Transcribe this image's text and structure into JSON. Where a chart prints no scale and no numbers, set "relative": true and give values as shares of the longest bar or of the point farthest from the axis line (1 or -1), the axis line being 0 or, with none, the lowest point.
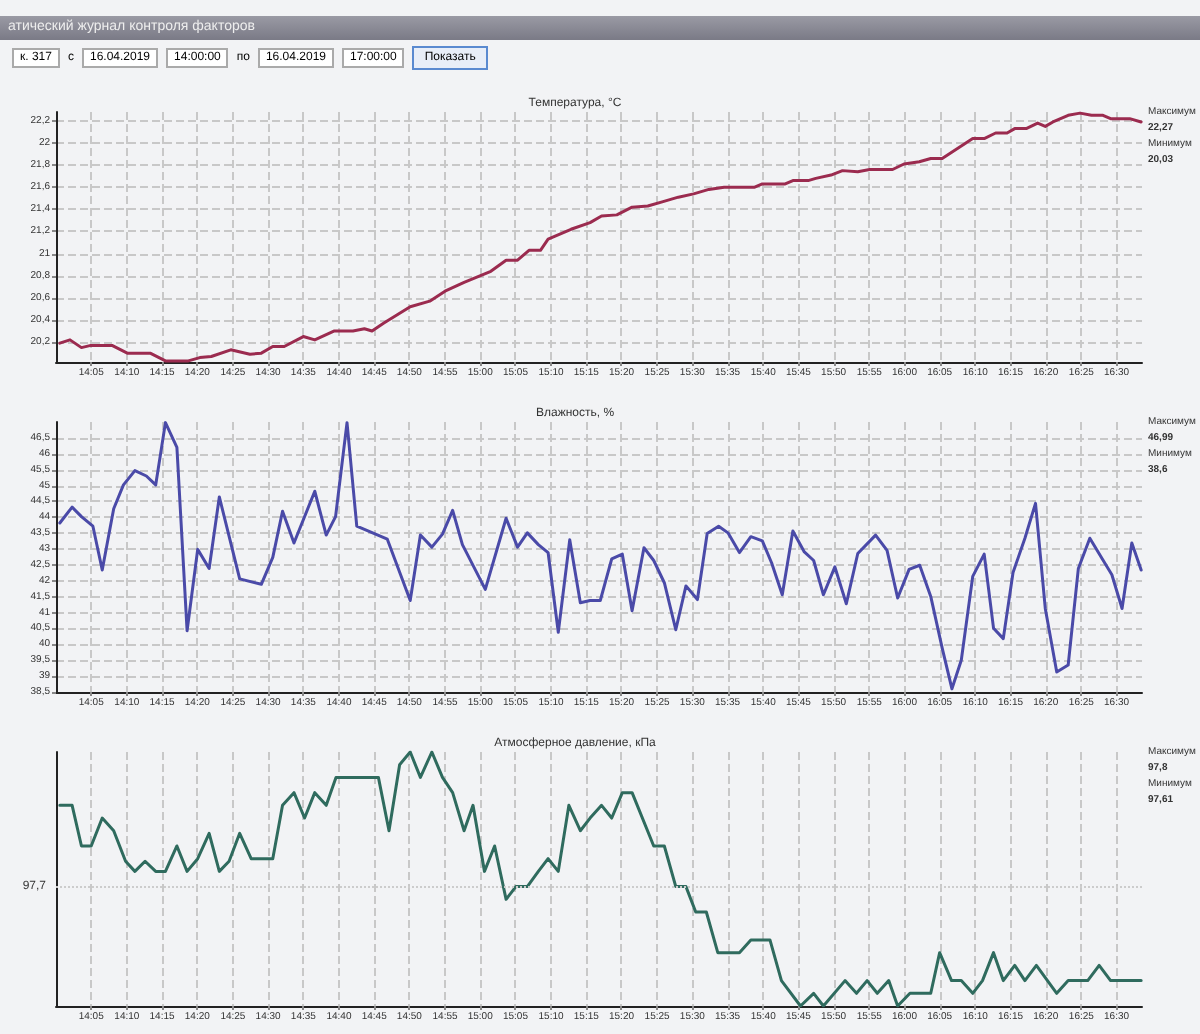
{
  "chart_data": [
    {
      "type": "line",
      "title": "Температура, °C",
      "annotations": [
        "атический журнал контроля факторов",
        "к. 317",
        "с",
        "16.04.2019",
        "14:00:00",
        "по",
        "16.04.2019",
        "17:00:00",
        "Показать",
        "Максимум",
        "22,27",
        "Минимум",
        "20,03"
      ],
      "series": [
        {
          "color": "#9b2b4f",
          "x": [
            14.009,
            14.033,
            14.06,
            14.082,
            14.132,
            14.168,
            14.222,
            14.258,
            14.312,
            14.339,
            14.366,
            14.412,
            14.457,
            14.484,
            14.511,
            14.538,
            14.583,
            14.61,
            14.655,
            14.7,
            14.727,
            14.745,
            14.772,
            14.835,
            14.881,
            14.917,
            14.962,
            15.025,
            15.061,
            15.088,
            15.115,
            15.142,
            15.16,
            15.214,
            15.259,
            15.286,
            15.322,
            15.358,
            15.395,
            15.431,
            15.467,
            15.503,
            15.539,
            15.575,
            15.647,
            15.665,
            15.719,
            15.737,
            15.773,
            15.791,
            15.827,
            15.854,
            15.89,
            15.918,
            15.972,
            15.999,
            16.035,
            16.062,
            16.089,
            16.125,
            16.161,
            16.188,
            16.215,
            16.242,
            16.26,
            16.287,
            16.314,
            16.332,
            16.35,
            16.386,
            16.414,
            16.441,
            16.468,
            16.486,
            16.531,
            16.558
          ],
          "values": [
            20.19,
            20.22,
            20.15,
            20.17,
            20.17,
            20.1,
            20.1,
            20.03,
            20.03,
            20.06,
            20.07,
            20.13,
            20.09,
            20.1,
            20.16,
            20.16,
            20.25,
            20.22,
            20.3,
            20.3,
            20.32,
            20.3,
            20.37,
            20.52,
            20.57,
            20.66,
            20.74,
            20.84,
            20.94,
            20.94,
            21.03,
            21.03,
            21.13,
            21.22,
            21.28,
            21.34,
            21.35,
            21.42,
            21.43,
            21.47,
            21.51,
            21.54,
            21.58,
            21.6,
            21.6,
            21.63,
            21.63,
            21.66,
            21.66,
            21.68,
            21.71,
            21.75,
            21.74,
            21.76,
            21.76,
            21.81,
            21.83,
            21.86,
            21.86,
            21.95,
            22.04,
            22.04,
            22.09,
            22.09,
            22.13,
            22.13,
            22.18,
            22.15,
            22.19,
            22.25,
            22.27,
            22.25,
            22.25,
            22.22,
            22.22,
            22.19
          ]
        }
      ],
      "xlim": [
        14.0,
        16.56
      ],
      "xticks": [
        {
          "value": 14.083,
          "label": "14:05"
        },
        {
          "value": 14.167,
          "label": "14:10"
        },
        {
          "value": 14.25,
          "label": "14:15"
        },
        {
          "value": 14.333,
          "label": "14:20"
        },
        {
          "value": 14.417,
          "label": "14:25"
        },
        {
          "value": 14.5,
          "label": "14:30"
        },
        {
          "value": 14.583,
          "label": "14:35"
        },
        {
          "value": 14.667,
          "label": "14:40"
        },
        {
          "value": 14.75,
          "label": "14:45"
        },
        {
          "value": 14.833,
          "label": "14:50"
        },
        {
          "value": 14.917,
          "label": "14:55"
        },
        {
          "value": 15,
          "label": "15:00"
        },
        {
          "value": 15.083,
          "label": "15:05"
        },
        {
          "value": 15.167,
          "label": "15:10"
        },
        {
          "value": 15.25,
          "label": "15:15"
        },
        {
          "value": 15.333,
          "label": "15:20"
        },
        {
          "value": 15.417,
          "label": "15:25"
        },
        {
          "value": 15.5,
          "label": "15:30"
        },
        {
          "value": 15.583,
          "label": "15:35"
        },
        {
          "value": 15.667,
          "label": "15:40"
        },
        {
          "value": 15.75,
          "label": "15:45"
        },
        {
          "value": 15.833,
          "label": "15:50"
        },
        {
          "value": 15.917,
          "label": "15:55"
        },
        {
          "value": 16,
          "label": "16:00"
        },
        {
          "value": 16.083,
          "label": "16:05"
        },
        {
          "value": 16.167,
          "label": "16:10"
        },
        {
          "value": 16.25,
          "label": "16:15"
        },
        {
          "value": 16.333,
          "label": "16:20"
        },
        {
          "value": 16.417,
          "label": "16:25"
        },
        {
          "value": 16.5,
          "label": "16:30"
        }
      ],
      "ylim": [
        20.02,
        22.28
      ],
      "yticks": [
        {
          "value": 20.2,
          "label": "20,2"
        },
        {
          "value": 20.4,
          "label": "20,4"
        },
        {
          "value": 20.6,
          "label": "20,6"
        },
        {
          "value": 20.8,
          "label": "20,8"
        },
        {
          "value": 21,
          "label": "21"
        },
        {
          "value": 21.2,
          "label": "21,2"
        },
        {
          "value": 21.4,
          "label": "21,4"
        },
        {
          "value": 21.6,
          "label": "21,6"
        },
        {
          "value": 21.8,
          "label": "21,8"
        },
        {
          "value": 22,
          "label": "22"
        },
        {
          "value": 22.2,
          "label": "22,2"
        }
      ],
      "grid": true,
      "marker": "none",
      "line_style": "solid"
    },
    {
      "type": "line",
      "title": "Влажность, %",
      "annotations": [
        "Максимум",
        "46,99",
        "Минимум",
        "38,6"
      ],
      "series": [
        {
          "color": "#4a4aa8",
          "x": [
            14.009,
            14.038,
            14.06,
            14.087,
            14.109,
            14.136,
            14.159,
            14.186,
            14.213,
            14.235,
            14.258,
            14.285,
            14.309,
            14.334,
            14.361,
            14.385,
            14.433,
            14.484,
            14.511,
            14.534,
            14.561,
            14.61,
            14.637,
            14.659,
            14.686,
            14.709,
            14.781,
            14.835,
            14.859,
            14.886,
            14.911,
            14.935,
            14.958,
            15.012,
            15.061,
            15.088,
            15.111,
            15.137,
            15.16,
            15.184,
            15.211,
            15.236,
            15.259,
            15.283,
            15.31,
            15.335,
            15.358,
            15.386,
            15.409,
            15.434,
            15.461,
            15.485,
            15.512,
            15.535,
            15.562,
            15.584,
            15.611,
            15.638,
            15.665,
            15.687,
            15.712,
            15.737,
            15.764,
            15.786,
            15.809,
            15.836,
            15.863,
            15.89,
            15.932,
            15.959,
            15.984,
            16.011,
            16.036,
            16.062,
            16.089,
            16.112,
            16.134,
            16.161,
            16.188,
            16.21,
            16.233,
            16.256,
            16.284,
            16.309,
            16.332,
            16.359,
            16.386,
            16.41,
            16.437,
            16.464,
            16.489,
            16.513,
            16.536,
            16.558
          ],
          "values": [
            43.82,
            44.32,
            44.02,
            43.72,
            42.34,
            44.27,
            45.02,
            45.47,
            45.3,
            45.02,
            46.98,
            46.2,
            40.43,
            42.99,
            42.39,
            44.64,
            42.06,
            41.89,
            42.74,
            44.19,
            43.19,
            44.82,
            43.44,
            44.02,
            46.98,
            43.72,
            43.31,
            41.38,
            43.44,
            43.06,
            43.47,
            44.22,
            43.14,
            41.73,
            43.97,
            43.06,
            43.51,
            43.14,
            42.89,
            40.38,
            43.29,
            41.31,
            41.38,
            41.38,
            42.69,
            42.84,
            41.06,
            43.04,
            42.64,
            41.94,
            40.46,
            41.84,
            41.41,
            43.49,
            43.72,
            43.51,
            42.89,
            43.39,
            43.26,
            42.56,
            41.56,
            43.57,
            42.91,
            42.64,
            41.56,
            42.44,
            41.28,
            42.86,
            43.44,
            42.96,
            41.46,
            42.36,
            42.49,
            41.51,
            39.88,
            38.6,
            39.5,
            42.14,
            42.84,
            40.51,
            40.18,
            42.26,
            43.34,
            44.44,
            41.13,
            39.13,
            39.35,
            42.39,
            43.34,
            42.74,
            42.19,
            41.13,
            43.19,
            42.34
          ]
        }
      ],
      "xlim": [
        14.0,
        16.56
      ],
      "xticks": [
        {
          "value": 14.083,
          "label": "14:05"
        },
        {
          "value": 14.167,
          "label": "14:10"
        },
        {
          "value": 14.25,
          "label": "14:15"
        },
        {
          "value": 14.333,
          "label": "14:20"
        },
        {
          "value": 14.417,
          "label": "14:25"
        },
        {
          "value": 14.5,
          "label": "14:30"
        },
        {
          "value": 14.583,
          "label": "14:35"
        },
        {
          "value": 14.667,
          "label": "14:40"
        },
        {
          "value": 14.75,
          "label": "14:45"
        },
        {
          "value": 14.833,
          "label": "14:50"
        },
        {
          "value": 14.917,
          "label": "14:55"
        },
        {
          "value": 15,
          "label": "15:00"
        },
        {
          "value": 15.083,
          "label": "15:05"
        },
        {
          "value": 15.167,
          "label": "15:10"
        },
        {
          "value": 15.25,
          "label": "15:15"
        },
        {
          "value": 15.333,
          "label": "15:20"
        },
        {
          "value": 15.417,
          "label": "15:25"
        },
        {
          "value": 15.5,
          "label": "15:30"
        },
        {
          "value": 15.583,
          "label": "15:35"
        },
        {
          "value": 15.667,
          "label": "15:40"
        },
        {
          "value": 15.75,
          "label": "15:45"
        },
        {
          "value": 15.833,
          "label": "15:50"
        },
        {
          "value": 15.917,
          "label": "15:55"
        },
        {
          "value": 16,
          "label": "16:00"
        },
        {
          "value": 16.083,
          "label": "16:05"
        },
        {
          "value": 16.167,
          "label": "16:10"
        },
        {
          "value": 16.25,
          "label": "16:15"
        },
        {
          "value": 16.333,
          "label": "16:20"
        },
        {
          "value": 16.417,
          "label": "16:25"
        },
        {
          "value": 16.5,
          "label": "16:30"
        }
      ],
      "ylim": [
        38.5,
        47.0
      ],
      "yticks": [
        {
          "value": 38.5,
          "label": "38,5"
        },
        39,
        {
          "value": 39.5,
          "label": "39,5"
        },
        40,
        {
          "value": 40.5,
          "label": "40,5"
        },
        41,
        {
          "value": 41.5,
          "label": "41,5"
        },
        42,
        {
          "value": 42.5,
          "label": "42,5"
        },
        43,
        {
          "value": 43.5,
          "label": "43,5"
        },
        44,
        {
          "value": 44.5,
          "label": "44,5"
        },
        45,
        {
          "value": 45.5,
          "label": "45,5"
        },
        46,
        {
          "value": 46.5,
          "label": "46,5"
        }
      ],
      "grid": true,
      "marker": "none",
      "line_style": "solid"
    },
    {
      "type": "line",
      "title": "Атмосферное давление, кПа",
      "annotations": [
        "97,7",
        "Максимум",
        "97,8",
        "Минимум",
        "97,61"
      ],
      "relative": true,
      "series": [
        {
          "color": "#2f6b5e",
          "x": [
            14.009,
            14.038,
            14.06,
            14.083,
            14.109,
            14.136,
            14.164,
            14.186,
            14.21,
            14.235,
            14.258,
            14.285,
            14.309,
            14.334,
            14.361,
            14.385,
            14.408,
            14.433,
            14.46,
            14.511,
            14.534,
            14.561,
            14.586,
            14.61,
            14.637,
            14.66,
            14.76,
            14.785,
            14.81,
            14.835,
            14.859,
            14.886,
            14.911,
            14.935,
            14.962,
            14.983,
            15.01,
            15.034,
            15.061,
            15.084,
            15.111,
            15.137,
            15.16,
            15.184,
            15.209,
            15.236,
            15.259,
            15.286,
            15.31,
            15.335,
            15.358,
            15.409,
            15.434,
            15.461,
            15.485,
            15.508,
            15.533,
            15.56,
            15.611,
            15.638,
            15.683,
            15.71,
            15.755,
            15.786,
            15.809,
            15.86,
            15.887,
            15.912,
            15.936,
            15.963,
            15.984,
            16.013,
            16.062,
            16.083,
            16.111,
            16.134,
            16.161,
            16.184,
            16.21,
            16.233,
            16.26,
            16.284,
            16.311,
            16.359,
            16.386,
            16.432,
            16.459,
            16.486,
            16.558
          ],
          "values": [
            0.79,
            0.79,
            0.63,
            0.63,
            0.74,
            0.69,
            0.57,
            0.53,
            0.57,
            0.53,
            0.53,
            0.63,
            0.53,
            0.58,
            0.68,
            0.53,
            0.57,
            0.68,
            0.58,
            0.58,
            0.79,
            0.84,
            0.74,
            0.84,
            0.79,
            0.9,
            0.9,
            0.69,
            0.95,
            1,
            0.9,
            1,
            0.9,
            0.84,
            0.69,
            0.79,
            0.53,
            0.63,
            0.42,
            0.47,
            0.47,
            0.53,
            0.58,
            0.53,
            0.79,
            0.69,
            0.74,
            0.79,
            0.74,
            0.84,
            0.84,
            0.63,
            0.63,
            0.47,
            0.47,
            0.37,
            0.37,
            0.21,
            0.21,
            0.26,
            0.26,
            0.1,
            0,
            0.05,
            0,
            0.1,
            0.05,
            0.1,
            0.05,
            0.1,
            0,
            0.05,
            0.05,
            0.21,
            0.1,
            0.1,
            0.05,
            0.1,
            0.21,
            0.1,
            0.16,
            0.1,
            0.16,
            0.05,
            0.1,
            0.1,
            0.16,
            0.1,
            0.1
          ]
        }
      ],
      "xlim": [
        14.0,
        16.56
      ],
      "xticks": [
        {
          "value": 14.083,
          "label": "14:05"
        },
        {
          "value": 14.167,
          "label": "14:10"
        },
        {
          "value": 14.25,
          "label": "14:15"
        },
        {
          "value": 14.333,
          "label": "14:20"
        },
        {
          "value": 14.417,
          "label": "14:25"
        },
        {
          "value": 14.5,
          "label": "14:30"
        },
        {
          "value": 14.583,
          "label": "14:35"
        },
        {
          "value": 14.667,
          "label": "14:40"
        },
        {
          "value": 14.75,
          "label": "14:45"
        },
        {
          "value": 14.833,
          "label": "14:50"
        },
        {
          "value": 14.917,
          "label": "14:55"
        },
        {
          "value": 15,
          "label": "15:00"
        },
        {
          "value": 15.083,
          "label": "15:05"
        },
        {
          "value": 15.167,
          "label": "15:10"
        },
        {
          "value": 15.25,
          "label": "15:15"
        },
        {
          "value": 15.333,
          "label": "15:20"
        },
        {
          "value": 15.417,
          "label": "15:25"
        },
        {
          "value": 15.5,
          "label": "15:30"
        },
        {
          "value": 15.583,
          "label": "15:35"
        },
        {
          "value": 15.667,
          "label": "15:40"
        },
        {
          "value": 15.75,
          "label": "15:45"
        },
        {
          "value": 15.833,
          "label": "15:50"
        },
        {
          "value": 15.917,
          "label": "15:55"
        },
        {
          "value": 16,
          "label": "16:00"
        },
        {
          "value": 16.083,
          "label": "16:05"
        },
        {
          "value": 16.167,
          "label": "16:10"
        },
        {
          "value": 16.25,
          "label": "16:15"
        },
        {
          "value": 16.333,
          "label": "16:20"
        },
        {
          "value": 16.417,
          "label": "16:25"
        },
        {
          "value": 16.5,
          "label": "16:30"
        }
      ],
      "ref_lines": [
        {
          "axis": "y",
          "value": 0.47,
          "color": "#cccccc",
          "line_style": "dotted"
        }
      ],
      "grid": "x",
      "marker": "none",
      "line_style": "solid"
    }
  ]
}
